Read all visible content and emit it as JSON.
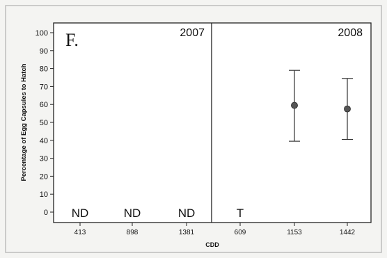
{
  "chart_data": {
    "type": "scatter",
    "panel_letter": "F.",
    "xlabel": "CDD",
    "ylabel": "Percentage of Egg Capsules to Hatch",
    "ylim": [
      0,
      100
    ],
    "yticks": [
      0,
      10,
      20,
      30,
      40,
      50,
      60,
      70,
      80,
      90,
      100
    ],
    "grid": false,
    "panels": [
      {
        "year": "2007",
        "categories": [
          "413",
          "898",
          "1381"
        ],
        "points": [
          {
            "x": "413",
            "mean": null,
            "lower": null,
            "upper": null,
            "label": "ND"
          },
          {
            "x": "898",
            "mean": null,
            "lower": null,
            "upper": null,
            "label": "ND"
          },
          {
            "x": "1381",
            "mean": null,
            "lower": null,
            "upper": null,
            "label": "ND"
          }
        ]
      },
      {
        "year": "2008",
        "categories": [
          "609",
          "1153",
          "1442"
        ],
        "points": [
          {
            "x": "609",
            "mean": null,
            "lower": null,
            "upper": null,
            "label": "T"
          },
          {
            "x": "1153",
            "mean": 59.5,
            "lower": 39.5,
            "upper": 79,
            "label": ""
          },
          {
            "x": "1442",
            "mean": 57.5,
            "lower": 40.5,
            "upper": 74.5,
            "label": ""
          }
        ]
      }
    ],
    "colors": {
      "frame": "#222222",
      "marker": "#555555",
      "errorbar": "#333333",
      "plot_bg": "#ffffff"
    }
  }
}
